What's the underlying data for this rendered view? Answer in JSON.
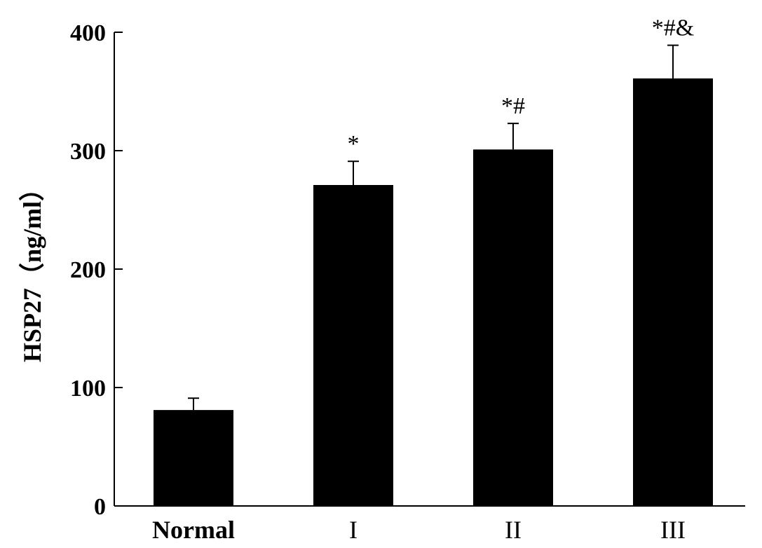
{
  "chart_data": {
    "type": "bar",
    "categories": [
      "Normal",
      "I",
      "II",
      "III"
    ],
    "values": [
      81,
      271,
      301,
      361
    ],
    "error_bars": [
      10,
      20,
      22,
      28
    ],
    "significance_labels": [
      "",
      "*",
      "*#",
      "*#&"
    ],
    "ylabel": "HSP27（ng/ml）",
    "xlabel": "",
    "ylim": [
      0,
      400
    ],
    "yticks": [
      0,
      100,
      200,
      300,
      400
    ],
    "bar_color": "#000000",
    "grid": false,
    "legend": "none"
  }
}
